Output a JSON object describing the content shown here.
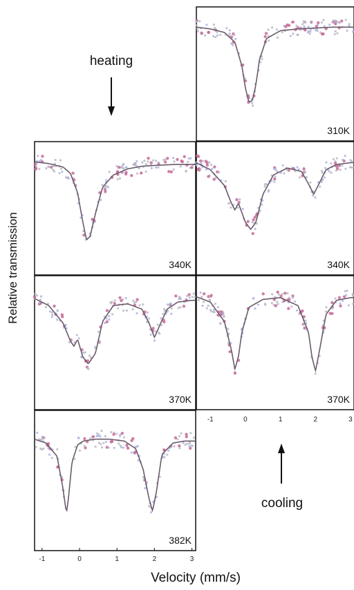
{
  "figure": {
    "ylabel": "Relative transmission",
    "xlabel": "Velocity (mm/s)",
    "heating_label": "heating",
    "cooling_label": "cooling"
  },
  "chart_data": [
    {
      "type": "line",
      "panel": "heating-top / cooling-top",
      "label": "310K",
      "xlim": [
        -1.4,
        3.1
      ],
      "x": [
        -1.4,
        -1.0,
        -0.6,
        -0.3,
        -0.1,
        0.0,
        0.1,
        0.2,
        0.3,
        0.4,
        0.6,
        1.0,
        1.5,
        2.0,
        2.5,
        3.0
      ],
      "y": [
        0.99,
        0.97,
        0.93,
        0.82,
        0.55,
        0.3,
        0.14,
        0.16,
        0.34,
        0.62,
        0.86,
        0.95,
        0.97,
        0.98,
        0.99,
        0.99
      ]
    },
    {
      "type": "line",
      "panel": "heating",
      "label": "340K",
      "xlim": [
        -1.4,
        3.1
      ],
      "x": [
        -1.4,
        -1.0,
        -0.6,
        -0.4,
        -0.2,
        -0.05,
        0.05,
        0.15,
        0.3,
        0.5,
        0.8,
        1.2,
        1.6,
        2.0,
        2.5,
        3.0
      ],
      "y": [
        0.99,
        0.97,
        0.93,
        0.86,
        0.64,
        0.3,
        0.1,
        0.14,
        0.4,
        0.7,
        0.84,
        0.91,
        0.94,
        0.95,
        0.96,
        0.96
      ]
    },
    {
      "type": "line",
      "panel": "cooling",
      "label": "340K",
      "xlim": [
        -1.4,
        3.1
      ],
      "x": [
        -1.4,
        -1.0,
        -0.6,
        -0.4,
        -0.3,
        -0.2,
        0.0,
        0.15,
        0.3,
        0.5,
        0.8,
        1.2,
        1.6,
        1.8,
        1.95,
        2.1,
        2.3,
        2.6,
        3.0
      ],
      "y": [
        0.98,
        0.9,
        0.72,
        0.52,
        0.44,
        0.52,
        0.3,
        0.22,
        0.3,
        0.62,
        0.84,
        0.92,
        0.88,
        0.74,
        0.62,
        0.74,
        0.9,
        0.96,
        0.98
      ]
    },
    {
      "type": "line",
      "panel": "heating",
      "label": "370K",
      "xlim": [
        -1.4,
        3.1
      ],
      "x": [
        -1.4,
        -1.0,
        -0.6,
        -0.4,
        -0.3,
        -0.2,
        -0.05,
        0.1,
        0.3,
        0.5,
        0.8,
        1.2,
        1.6,
        1.8,
        1.95,
        2.1,
        2.3,
        2.6,
        3.0
      ],
      "y": [
        0.96,
        0.88,
        0.68,
        0.48,
        0.42,
        0.5,
        0.3,
        0.22,
        0.34,
        0.7,
        0.88,
        0.9,
        0.84,
        0.68,
        0.52,
        0.66,
        0.84,
        0.92,
        0.94
      ]
    },
    {
      "type": "line",
      "panel": "cooling",
      "label": "370K",
      "xlim": [
        -1.4,
        3.1
      ],
      "x": [
        -1.4,
        -1.0,
        -0.6,
        -0.4,
        -0.3,
        -0.2,
        -0.1,
        0.1,
        0.5,
        1.0,
        1.5,
        1.8,
        1.9,
        2.0,
        2.1,
        2.3,
        2.6,
        3.0
      ],
      "y": [
        0.98,
        0.92,
        0.7,
        0.38,
        0.16,
        0.3,
        0.58,
        0.86,
        0.95,
        0.97,
        0.88,
        0.58,
        0.3,
        0.14,
        0.34,
        0.78,
        0.94,
        0.97
      ]
    },
    {
      "type": "line",
      "panel": "heating",
      "label": "382K",
      "xlim": [
        -1.2,
        3.1
      ],
      "xticks": [
        -1,
        0,
        1,
        2,
        3
      ],
      "x": [
        -1.2,
        -0.9,
        -0.6,
        -0.45,
        -0.35,
        -0.3,
        -0.2,
        -0.05,
        0.1,
        0.4,
        0.8,
        1.2,
        1.5,
        1.7,
        1.85,
        1.95,
        2.05,
        2.2,
        2.5,
        2.8,
        3.0
      ],
      "y": [
        0.9,
        0.86,
        0.72,
        0.4,
        0.12,
        0.26,
        0.66,
        0.84,
        0.88,
        0.9,
        0.9,
        0.88,
        0.8,
        0.58,
        0.28,
        0.14,
        0.34,
        0.74,
        0.86,
        0.88,
        0.88
      ]
    },
    {
      "type": "axis",
      "panel": "cooling-bottom",
      "xticks": [
        -1,
        0,
        1,
        2,
        3
      ]
    }
  ]
}
